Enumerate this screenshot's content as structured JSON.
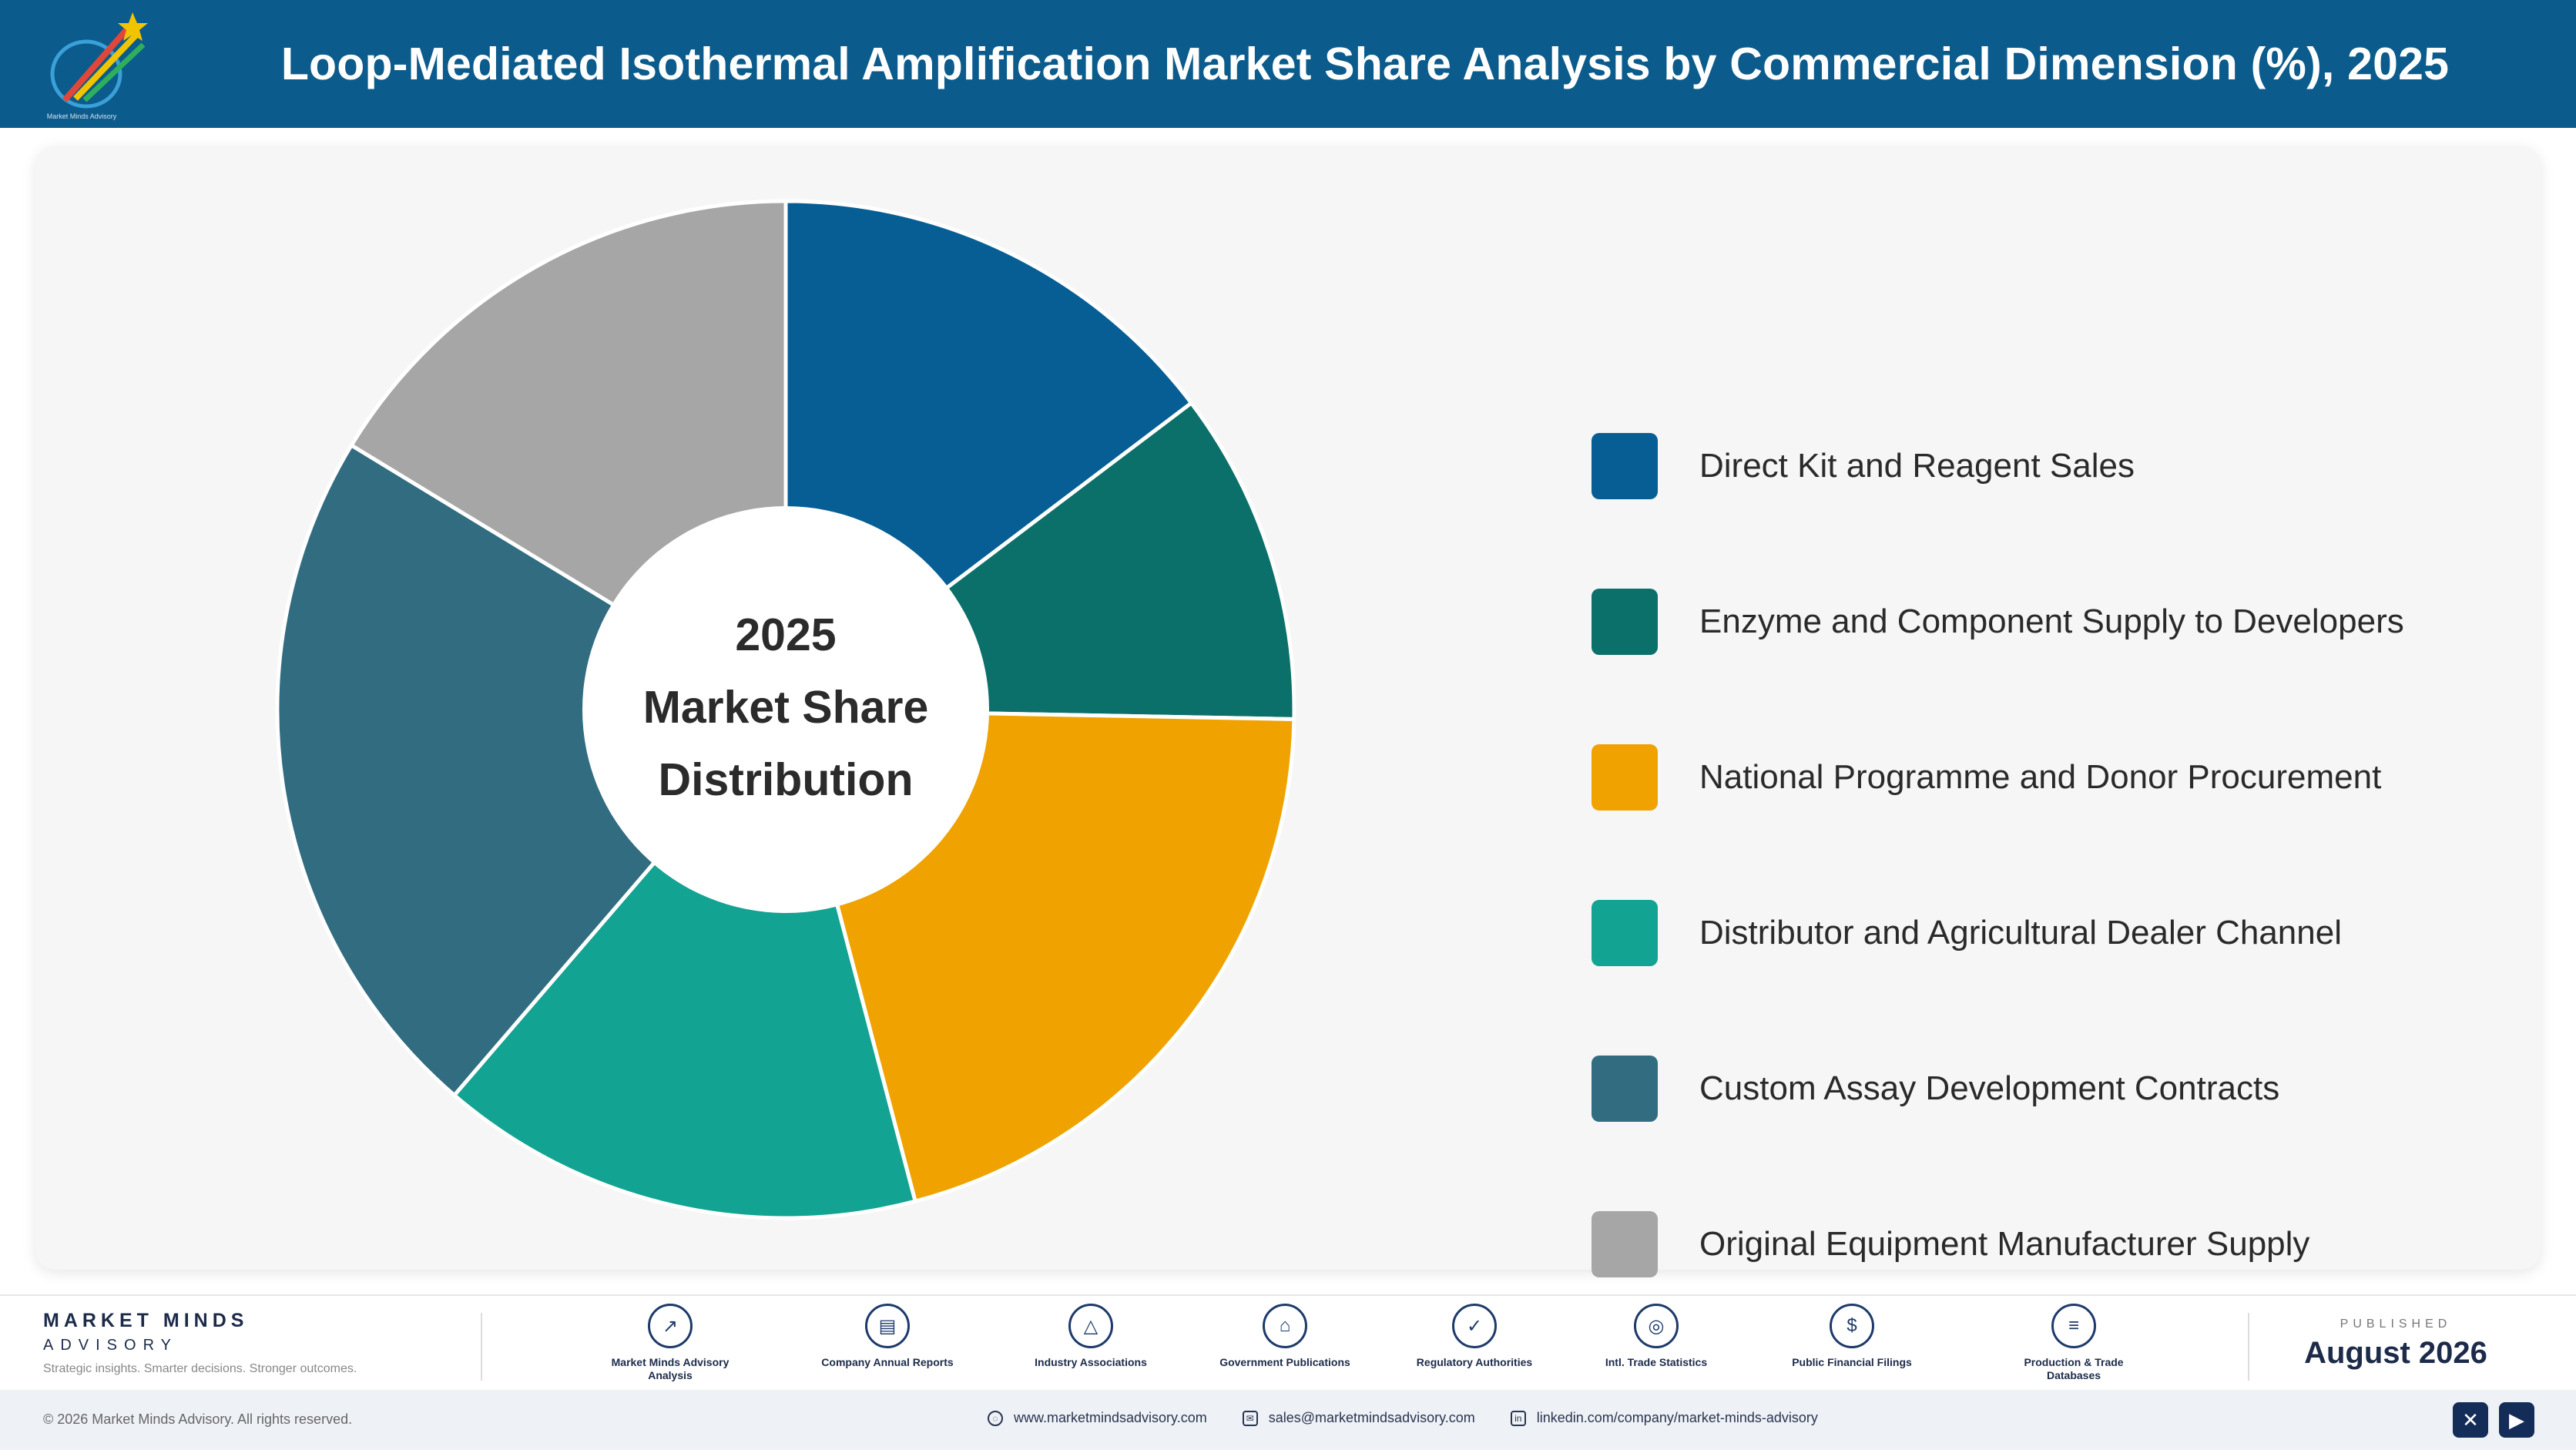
{
  "header": {
    "title": "Loop-Mediated Isothermal Amplification Market Share Analysis by Commercial Dimension (%), 2025",
    "logo_icon": "pencil-star-logo-icon",
    "background": "#0b5b8c"
  },
  "chart_data": {
    "type": "pie",
    "variant": "donut",
    "title": "Loop-Mediated Isothermal Amplification Market Share Analysis by Commercial Dimension (%), 2025",
    "center_label": [
      "2025",
      "Market Share",
      "Distribution"
    ],
    "legend_position": "right",
    "categories": [
      "Direct Kit and Reagent Sales",
      "Enzyme and Component Supply to Developers",
      "National Programme and Donor Procurement",
      "Distributor and Agricultural Dealer Channel",
      "Custom Assay Development Contracts",
      "Original Equipment Manufacturer Supply"
    ],
    "values": [
      14.7,
      10.6,
      20.6,
      15.4,
      22.4,
      16.3
    ],
    "colors": [
      "#075e94",
      "#0b6f6a",
      "#f0a300",
      "#12a392",
      "#316c80",
      "#a6a6a6"
    ]
  },
  "footer": {
    "brand_name": "MARKET MINDS",
    "brand_sub": "ADVISORY",
    "brand_tag": "Strategic insights. Smarter decisions. Stronger outcomes.",
    "sources": [
      {
        "label": "Market Minds Advisory Analysis",
        "icon": "trend-chart-icon"
      },
      {
        "label": "Company Annual Reports",
        "icon": "document-icon"
      },
      {
        "label": "Industry Associations",
        "icon": "network-icon"
      },
      {
        "label": "Government Publications",
        "icon": "government-building-icon"
      },
      {
        "label": "Regulatory Authorities",
        "icon": "shield-check-icon"
      },
      {
        "label": "Intl. Trade Statistics",
        "icon": "globe-icon"
      },
      {
        "label": "Public Financial Filings",
        "icon": "dollar-coin-icon"
      },
      {
        "label": "Production & Trade Databases",
        "icon": "database-icon"
      }
    ],
    "published_label": "PUBLISHED",
    "published_date": "August 2026"
  },
  "bottom_bar": {
    "copyright": "© 2026 Market Minds Advisory. All rights reserved.",
    "website": "www.marketmindsadvisory.com",
    "email": "sales@marketmindsadvisory.com",
    "linkedin": "linkedin.com/company/market-minds-advisory"
  }
}
